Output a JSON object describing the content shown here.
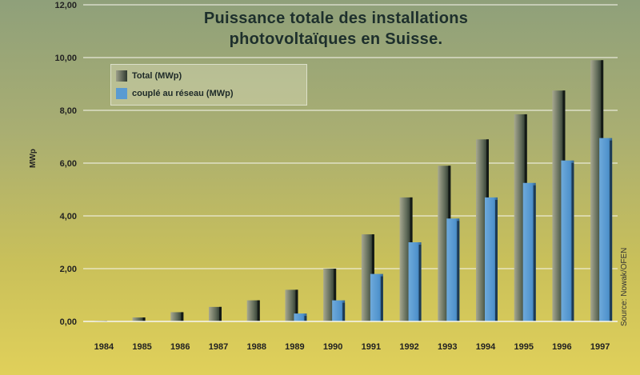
{
  "chart_data": {
    "type": "bar",
    "title_line1": "Puissance totale des installations",
    "title_line2": "photovoltaïques en Suisse.",
    "ylabel": "MWp",
    "source": "Source: Nowak/OFEN",
    "ylim": [
      0,
      12
    ],
    "yticks": [
      "0,00",
      "2,00",
      "4,00",
      "6,00",
      "8,00",
      "10,00",
      "12,00"
    ],
    "grid": true,
    "legend_position": "top-left",
    "categories": [
      "1984",
      "1985",
      "1986",
      "1987",
      "1988",
      "1989",
      "1990",
      "1991",
      "1992",
      "1993",
      "1994",
      "1995",
      "1996",
      "1997"
    ],
    "series": [
      {
        "name": "Total (MWp)",
        "values": [
          0.03,
          0.15,
          0.35,
          0.55,
          0.8,
          1.2,
          2.0,
          3.3,
          4.7,
          5.9,
          6.9,
          7.85,
          8.75,
          9.9
        ],
        "color": "#3f4a3e"
      },
      {
        "name": "couplé au réseau (MWp)",
        "values": [
          0.0,
          0.0,
          0.0,
          0.0,
          0.0,
          0.3,
          0.8,
          1.8,
          3.0,
          3.9,
          4.7,
          5.25,
          6.1,
          6.95
        ],
        "color": "#5a9bd2"
      }
    ]
  }
}
